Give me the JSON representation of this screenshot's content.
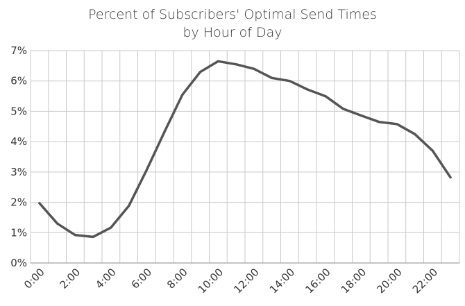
{
  "chart_data": {
    "type": "line",
    "title": "Percent of Subscribers' Optimal Send Times",
    "subtitle": "by Hour of Day",
    "xlabel": "",
    "ylabel": "",
    "x": [
      "0:00",
      "1:00",
      "2:00",
      "3:00",
      "4:00",
      "5:00",
      "6:00",
      "7:00",
      "8:00",
      "9:00",
      "10:00",
      "11:00",
      "12:00",
      "13:00",
      "14:00",
      "15:00",
      "16:00",
      "17:00",
      "18:00",
      "19:00",
      "20:00",
      "21:00",
      "22:00",
      "23:00"
    ],
    "x_tick_labels": [
      "0:00",
      "2:00",
      "4:00",
      "6:00",
      "8:00",
      "10:00",
      "12:00",
      "14:00",
      "16:00",
      "18:00",
      "20:00",
      "22:00"
    ],
    "y_tick_labels": [
      "0%",
      "1%",
      "2%",
      "3%",
      "4%",
      "5%",
      "6%",
      "7%"
    ],
    "ylim": [
      0,
      7
    ],
    "grid": true,
    "legend": "none",
    "series": [
      {
        "values": [
          1.97,
          1.3,
          0.92,
          0.86,
          1.17,
          1.88,
          3.07,
          4.33,
          5.55,
          6.3,
          6.65,
          6.55,
          6.4,
          6.1,
          6.0,
          5.72,
          5.5,
          5.08,
          4.86,
          4.65,
          4.58,
          4.25,
          3.7,
          2.82
        ],
        "color": "#555555"
      }
    ]
  }
}
